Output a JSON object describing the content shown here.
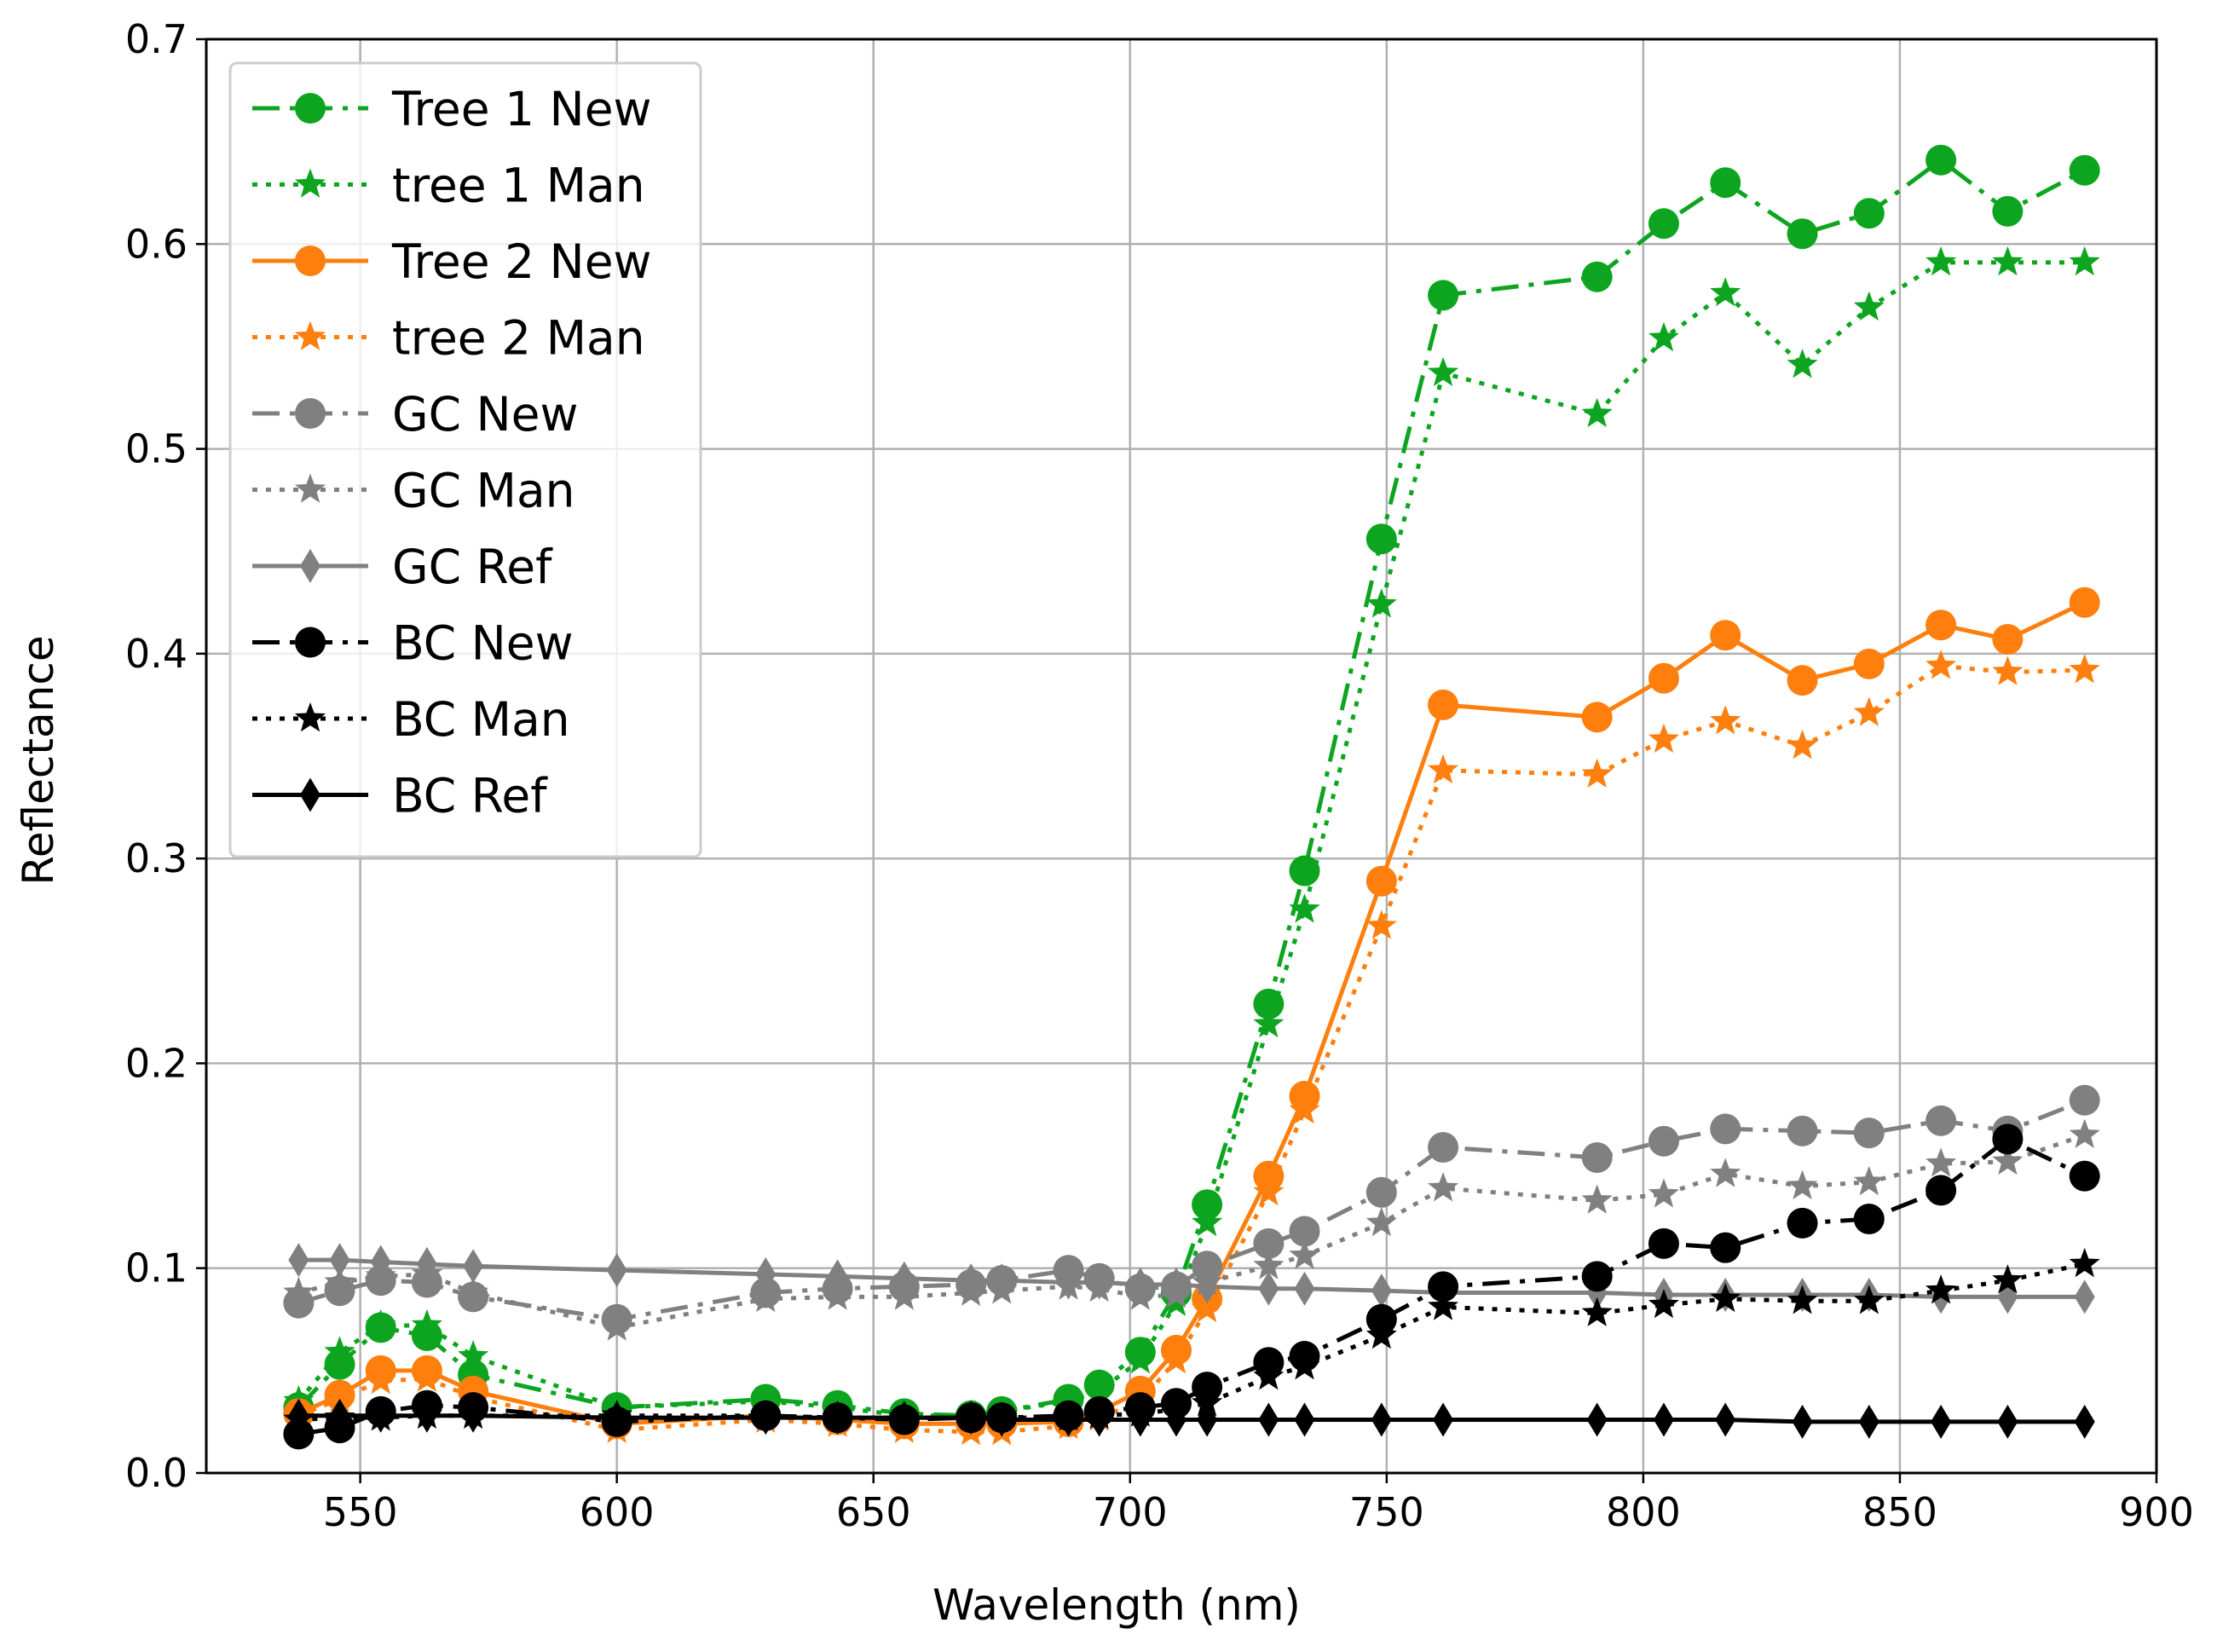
{
  "chart_data": {
    "type": "line",
    "title": "",
    "xlabel": "Wavelength (nm)",
    "ylabel": "Reflectance",
    "xlim": [
      520,
      900
    ],
    "ylim": [
      0.0,
      0.7
    ],
    "xticks": [
      550,
      600,
      650,
      700,
      750,
      800,
      850,
      900
    ],
    "yticks": [
      0.0,
      0.1,
      0.2,
      0.3,
      0.4,
      0.5,
      0.6,
      0.7
    ],
    "xtick_labels": [
      "550",
      "600",
      "650",
      "700",
      "750",
      "800",
      "850",
      "900"
    ],
    "ytick_labels": [
      "0.0",
      "0.1",
      "0.2",
      "0.3",
      "0.4",
      "0.5",
      "0.6",
      "0.7"
    ],
    "grid": true,
    "legend_position": "top-left",
    "x": [
      538,
      546,
      554,
      563,
      572,
      600,
      629,
      643,
      656,
      669,
      675,
      688,
      694,
      702,
      709,
      715,
      727,
      734,
      749,
      761,
      791,
      804,
      816,
      831,
      844,
      858,
      871,
      886
    ],
    "series": [
      {
        "name": "Tree 1 New",
        "color": "#0da51f",
        "line": "dashdot",
        "marker": "circle",
        "values": [
          0.032,
          0.053,
          0.071,
          0.067,
          0.048,
          0.032,
          0.036,
          0.033,
          0.029,
          0.028,
          0.03,
          0.036,
          0.043,
          0.059,
          0.088,
          0.131,
          0.229,
          0.294,
          0.456,
          0.575,
          0.584,
          0.61,
          0.63,
          0.605,
          0.615,
          0.641,
          0.616,
          0.636
        ]
      },
      {
        "name": "tree 1 Man",
        "color": "#0da51f",
        "line": "dotted",
        "marker": "star",
        "values": [
          0.035,
          0.059,
          0.072,
          0.072,
          0.057,
          0.032,
          0.035,
          0.032,
          0.028,
          0.028,
          0.03,
          0.035,
          0.04,
          0.055,
          0.083,
          0.122,
          0.219,
          0.275,
          0.424,
          0.537,
          0.517,
          0.554,
          0.576,
          0.541,
          0.569,
          0.591,
          0.591,
          0.591
        ]
      },
      {
        "name": "Tree 2 New",
        "color": "#ff7f0e",
        "line": "solid",
        "marker": "circle",
        "values": [
          0.029,
          0.038,
          0.05,
          0.05,
          0.04,
          0.024,
          0.028,
          0.026,
          0.024,
          0.024,
          0.024,
          0.025,
          0.03,
          0.04,
          0.06,
          0.085,
          0.145,
          0.184,
          0.289,
          0.375,
          0.369,
          0.388,
          0.409,
          0.387,
          0.395,
          0.414,
          0.407,
          0.425
        ]
      },
      {
        "name": "tree 2 Man",
        "color": "#ff7f0e",
        "line": "dotted",
        "marker": "star",
        "values": [
          0.028,
          0.036,
          0.045,
          0.046,
          0.037,
          0.021,
          0.026,
          0.024,
          0.021,
          0.02,
          0.02,
          0.023,
          0.027,
          0.035,
          0.055,
          0.08,
          0.137,
          0.177,
          0.267,
          0.343,
          0.341,
          0.358,
          0.367,
          0.355,
          0.371,
          0.394,
          0.391,
          0.392
        ]
      },
      {
        "name": "GC New",
        "color": "#808080",
        "line": "dashdot",
        "marker": "circle",
        "values": [
          0.083,
          0.089,
          0.094,
          0.093,
          0.086,
          0.075,
          0.088,
          0.09,
          0.091,
          0.092,
          0.094,
          0.099,
          0.095,
          0.09,
          0.091,
          0.101,
          0.112,
          0.118,
          0.137,
          0.159,
          0.154,
          0.162,
          0.168,
          0.167,
          0.166,
          0.172,
          0.167,
          0.182
        ]
      },
      {
        "name": "GC Man",
        "color": "#808080",
        "line": "dotted",
        "marker": "star",
        "values": [
          0.088,
          0.093,
          0.096,
          0.097,
          0.088,
          0.071,
          0.085,
          0.086,
          0.086,
          0.088,
          0.089,
          0.091,
          0.09,
          0.086,
          0.087,
          0.093,
          0.101,
          0.106,
          0.122,
          0.139,
          0.133,
          0.136,
          0.146,
          0.14,
          0.142,
          0.151,
          0.152,
          0.165
        ]
      },
      {
        "name": "GC Ref",
        "color": "#808080",
        "line": "solid",
        "marker": "thin_diamond",
        "values": [
          0.104,
          0.104,
          0.103,
          0.102,
          0.101,
          0.099,
          0.097,
          0.096,
          0.095,
          0.094,
          0.094,
          0.093,
          0.093,
          0.092,
          0.092,
          0.091,
          0.09,
          0.09,
          0.089,
          0.088,
          0.088,
          0.087,
          0.087,
          0.087,
          0.087,
          0.086,
          0.086,
          0.086
        ]
      },
      {
        "name": "BC New",
        "color": "#000000",
        "line": "dashdot",
        "marker": "circle",
        "values": [
          0.019,
          0.022,
          0.03,
          0.033,
          0.032,
          0.025,
          0.028,
          0.027,
          0.026,
          0.027,
          0.027,
          0.028,
          0.03,
          0.032,
          0.034,
          0.042,
          0.054,
          0.057,
          0.075,
          0.091,
          0.096,
          0.112,
          0.11,
          0.122,
          0.124,
          0.138,
          0.163,
          0.145
        ]
      },
      {
        "name": "BC Man",
        "color": "#000000",
        "line": "dotted",
        "marker": "star",
        "values": [
          0.026,
          0.027,
          0.027,
          0.028,
          0.028,
          0.028,
          0.028,
          0.027,
          0.027,
          0.027,
          0.027,
          0.027,
          0.028,
          0.029,
          0.031,
          0.034,
          0.047,
          0.052,
          0.067,
          0.081,
          0.078,
          0.082,
          0.085,
          0.084,
          0.084,
          0.089,
          0.094,
          0.102
        ]
      },
      {
        "name": "BC Ref",
        "color": "#000000",
        "line": "solid",
        "marker": "thin_diamond",
        "values": [
          0.028,
          0.028,
          0.028,
          0.028,
          0.028,
          0.027,
          0.027,
          0.027,
          0.027,
          0.027,
          0.026,
          0.026,
          0.026,
          0.026,
          0.026,
          0.026,
          0.026,
          0.026,
          0.026,
          0.026,
          0.026,
          0.026,
          0.026,
          0.025,
          0.025,
          0.025,
          0.025,
          0.025
        ]
      }
    ]
  }
}
